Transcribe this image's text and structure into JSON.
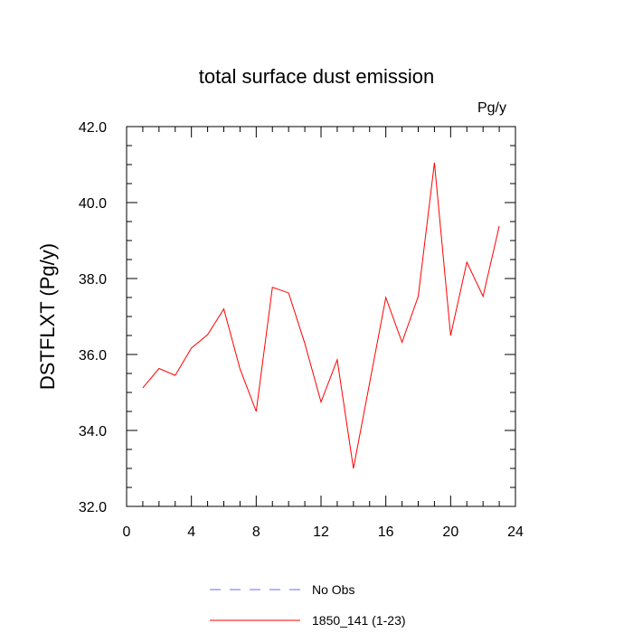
{
  "chart_data": {
    "type": "line",
    "title": "total surface dust emission",
    "units_label": "Pg/y",
    "ylabel": "DSTFLXT  (Pg/y)",
    "xlabel": "",
    "xlim": [
      0,
      24
    ],
    "ylim": [
      32,
      42
    ],
    "x_ticks": [
      0,
      4,
      8,
      12,
      16,
      20,
      24
    ],
    "x_tick_labels": [
      "0",
      "4",
      "8",
      "12",
      "16",
      "20",
      "24"
    ],
    "y_ticks": [
      32,
      34,
      36,
      38,
      40,
      42
    ],
    "y_tick_labels": [
      "32.0",
      "34.0",
      "36.0",
      "38.0",
      "40.0",
      "42.0"
    ],
    "grid": false,
    "legend_position": "bottom",
    "series": [
      {
        "name": "1850_141 (1-23)",
        "color": "#ff0000",
        "style": "solid",
        "x": [
          1,
          2,
          3,
          4,
          5,
          6,
          7,
          8,
          9,
          10,
          11,
          12,
          13,
          14,
          15,
          16,
          17,
          18,
          19,
          20,
          21,
          22,
          23
        ],
        "values": [
          35.12,
          35.63,
          35.45,
          36.17,
          36.52,
          37.2,
          35.62,
          34.5,
          37.77,
          37.62,
          36.29,
          34.75,
          35.86,
          33.0,
          35.25,
          37.5,
          36.32,
          37.53,
          41.05,
          36.5,
          38.43,
          37.53,
          39.38
        ]
      }
    ],
    "legend": [
      {
        "label": "No Obs",
        "color": "#6b6bff",
        "style": "dashed"
      },
      {
        "label": "1850_141 (1-23)",
        "color": "#ff0000",
        "style": "solid"
      }
    ]
  }
}
